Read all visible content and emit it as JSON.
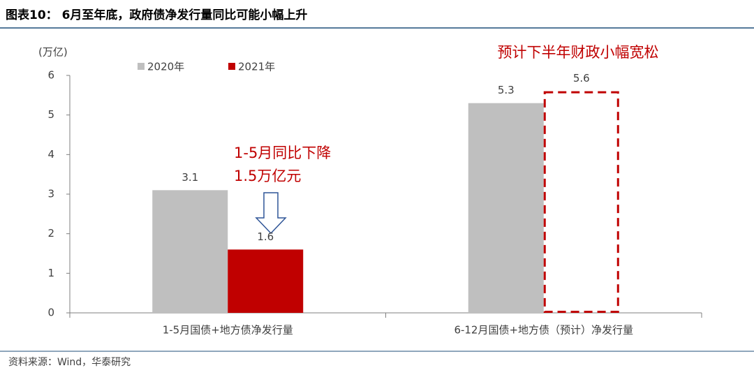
{
  "chart_data": {
    "type": "bar",
    "title": "图表10： 6月至年底，政府债净发行量同比可能小幅上升",
    "y_label": "(万亿)",
    "categories": [
      "1-5月国债+地方债净发行量",
      "6-12月国债+地方债（预计）净发行量"
    ],
    "series": [
      {
        "name": "2020年",
        "color": "#bfbfbf",
        "values": [
          3.1,
          5.3
        ],
        "style": [
          "solid",
          "solid"
        ]
      },
      {
        "name": "2021年",
        "color": "#c00000",
        "values": [
          1.6,
          5.6
        ],
        "style": [
          "solid",
          "dashed"
        ]
      }
    ],
    "ylim": [
      0,
      6
    ],
    "yticks": [
      0,
      1,
      2,
      3,
      4,
      5,
      6
    ],
    "legend": "top-left",
    "annotations": [
      "1-5月同比下降",
      "1.5万亿元",
      "预计下半年财政小幅宽松"
    ],
    "source": "资料来源：Wind，华泰研究"
  }
}
